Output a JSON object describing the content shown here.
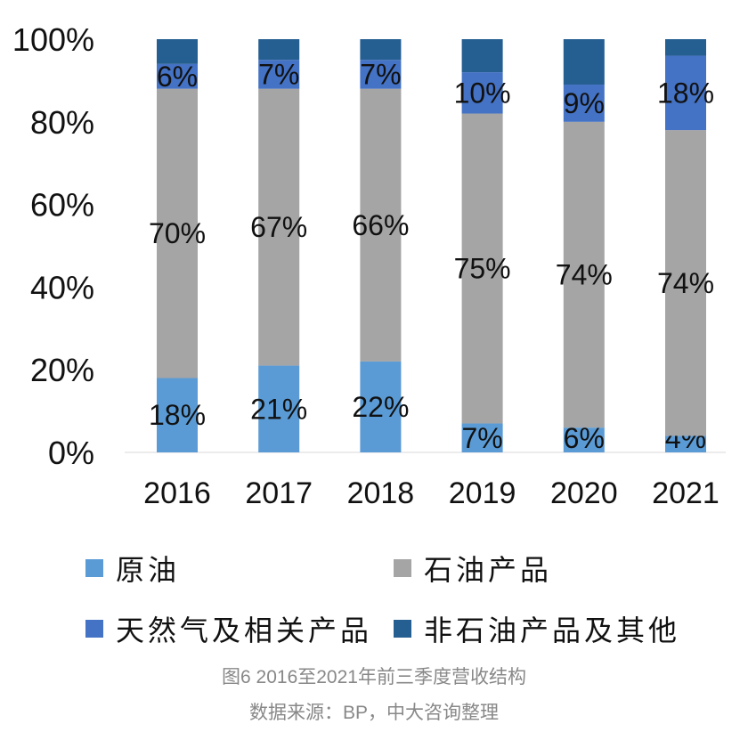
{
  "chart_data": {
    "type": "stacked-bar",
    "categories": [
      "2016",
      "2017",
      "2018",
      "2019",
      "2020",
      "2021"
    ],
    "series": [
      {
        "name": "原油",
        "color": "#5b9bd5",
        "values": [
          18,
          21,
          22,
          7,
          6,
          4
        ],
        "labels": [
          "18%",
          "21%",
          "22%",
          "7%",
          "6%",
          "4%"
        ]
      },
      {
        "name": "石油产品",
        "color": "#a5a5a5",
        "values": [
          70,
          67,
          66,
          75,
          74,
          74
        ],
        "labels": [
          "70%",
          "67%",
          "66%",
          "75%",
          "74%",
          "74%"
        ]
      },
      {
        "name": "天然气及相关产品",
        "color": "#4472c4",
        "values": [
          6,
          7,
          7,
          10,
          9,
          18
        ],
        "labels": [
          "6%",
          "7%",
          "7%",
          "10%",
          "9%",
          "18%"
        ]
      },
      {
        "name": "非石油产品及其他",
        "color": "#255e91",
        "values": [
          6,
          5,
          5,
          8,
          11,
          4
        ],
        "labels": [
          "",
          "",
          "",
          "",
          "",
          ""
        ]
      }
    ],
    "yticks": [
      "0%",
      "20%",
      "40%",
      "60%",
      "80%",
      "100%"
    ],
    "ylim": [
      0,
      100
    ],
    "legend": "bottom",
    "grid": false
  },
  "caption": {
    "title": "图6  2016至2021年前三季度营收结构",
    "source": "数据来源：BP，中大咨询整理"
  }
}
